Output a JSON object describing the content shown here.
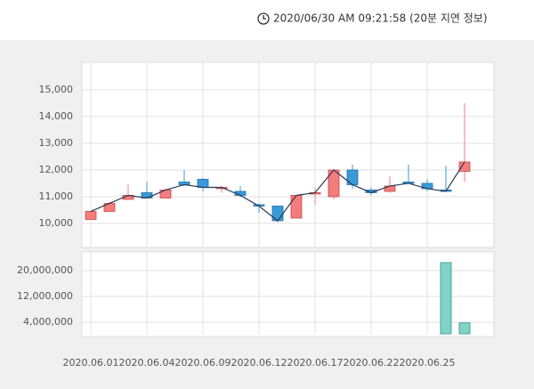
{
  "header": {
    "timestamp": "2020/06/30 AM 09:21:58 (20분 지연 정보)"
  },
  "chart_data": [
    {
      "type": "candlestick",
      "categories": [
        "2020.06.01",
        null,
        null,
        "2020.06.04",
        null,
        null,
        "2020.06.09",
        null,
        null,
        "2020.06.12",
        null,
        null,
        "2020.06.17",
        null,
        null,
        "2020.06.22",
        null,
        null,
        "2020.06.25",
        null,
        null
      ],
      "open": [
        10150,
        10450,
        10900,
        11150,
        10950,
        11550,
        11650,
        11300,
        11200,
        10700,
        10650,
        10200,
        11100,
        11000,
        12000,
        11250,
        11200,
        11550,
        11500,
        11250,
        11950
      ],
      "high": [
        10450,
        10800,
        11450,
        11550,
        11300,
        12000,
        11700,
        11400,
        11400,
        10750,
        10650,
        11050,
        11350,
        12000,
        12200,
        11350,
        11750,
        12200,
        11650,
        12150,
        14500
      ],
      "low": [
        10150,
        10450,
        10900,
        10950,
        10950,
        11400,
        11200,
        11150,
        11000,
        10400,
        10050,
        10200,
        10700,
        10900,
        11300,
        11050,
        11150,
        11500,
        11200,
        11200,
        11550
      ],
      "close": [
        10450,
        10750,
        11050,
        10950,
        11250,
        11450,
        11350,
        11350,
        11050,
        10650,
        10100,
        11050,
        11150,
        12000,
        11450,
        11150,
        11400,
        11500,
        11300,
        11200,
        12300
      ],
      "up_color": "#f47c7c",
      "down_color": "#3a9ad9",
      "line_color": "#2b3a55",
      "ylim": [
        9100,
        16030
      ],
      "yticks": [
        {
          "value": 10000,
          "label": "10,000"
        },
        {
          "value": 11000,
          "label": "11,000"
        },
        {
          "value": 12000,
          "label": "12,000"
        },
        {
          "value": 13000,
          "label": "13,000"
        },
        {
          "value": 14000,
          "label": "14,000"
        },
        {
          "value": 15000,
          "label": "15,000"
        }
      ],
      "grid": true
    },
    {
      "type": "bar",
      "values": [
        null,
        null,
        null,
        null,
        null,
        null,
        null,
        null,
        null,
        null,
        null,
        null,
        null,
        null,
        null,
        null,
        null,
        null,
        null,
        22500000,
        3800000
      ],
      "color": "#7fd3c8",
      "ylim": [
        400000,
        25800000
      ],
      "yticks": [
        {
          "value": 4000000,
          "label": "4,000,000"
        },
        {
          "value": 12000000,
          "label": "12,000,000"
        },
        {
          "value": 20000000,
          "label": "20,000,000"
        }
      ],
      "grid": true
    }
  ]
}
